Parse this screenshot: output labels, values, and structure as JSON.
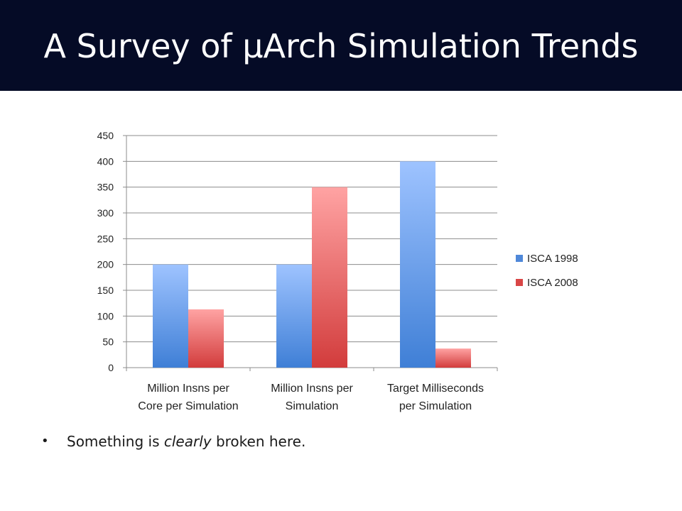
{
  "slide": {
    "title": "A Survey of µArch Simulation Trends",
    "bullet_marker": "•",
    "bullet_prefix": "Something is ",
    "bullet_emphasis": "clearly",
    "bullet_suffix": " broken here."
  },
  "colors": {
    "title_bg": "#050b26",
    "series_1998": "#4f88d9",
    "series_2008": "#d94646"
  },
  "chart_data": {
    "type": "bar",
    "categories": [
      [
        "Million Insns per",
        "Core per Simulation"
      ],
      [
        "Million Insns per",
        "Simulation"
      ],
      [
        "Target Milliseconds",
        "per Simulation"
      ]
    ],
    "series": [
      {
        "name": "ISCA 1998",
        "values": [
          200,
          200,
          400
        ]
      },
      {
        "name": "ISCA 2008",
        "values": [
          113,
          350,
          37
        ]
      }
    ],
    "ylim": [
      0,
      450
    ],
    "yticks": [
      0,
      50,
      100,
      150,
      200,
      250,
      300,
      350,
      400,
      450
    ],
    "grid": true,
    "legend_position": "right",
    "title": "",
    "xlabel": "",
    "ylabel": ""
  }
}
